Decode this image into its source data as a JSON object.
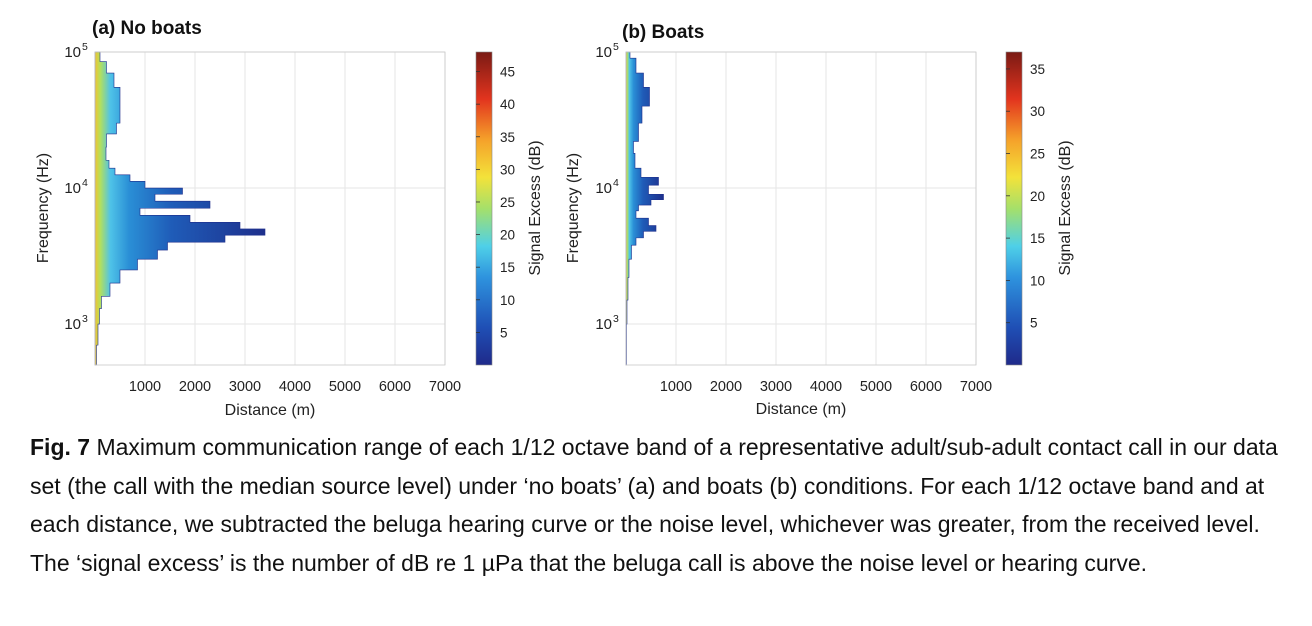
{
  "chart_data": [
    {
      "type": "heatmap",
      "title": "(a) No boats",
      "xlabel": "Distance (m)",
      "ylabel": "Frequency (Hz)",
      "colorbar_label": "Signal Excess (dB)",
      "xlim": [
        0,
        7000
      ],
      "ylim": [
        500,
        100000
      ],
      "y_scale": "log",
      "x_ticks": [
        1000,
        2000,
        3000,
        4000,
        5000,
        6000,
        7000
      ],
      "y_ticks": [
        {
          "value": 1000,
          "label": "10",
          "exp": "3"
        },
        {
          "value": 10000,
          "label": "10",
          "exp": "4"
        },
        {
          "value": 100000,
          "label": "10",
          "exp": "5"
        }
      ],
      "colorbar_range": [
        0,
        48
      ],
      "colorbar_ticks": [
        5,
        10,
        15,
        20,
        25,
        30,
        35,
        40,
        45
      ],
      "grid": true,
      "colormap": "jet",
      "max_range_profile": [
        {
          "f": 500,
          "d": 30
        },
        {
          "f": 700,
          "d": 60
        },
        {
          "f": 1000,
          "d": 90
        },
        {
          "f": 1300,
          "d": 130
        },
        {
          "f": 1600,
          "d": 300
        },
        {
          "f": 2000,
          "d": 500
        },
        {
          "f": 2500,
          "d": 850
        },
        {
          "f": 3000,
          "d": 1250
        },
        {
          "f": 3500,
          "d": 1450
        },
        {
          "f": 4000,
          "d": 2600
        },
        {
          "f": 4500,
          "d": 3400
        },
        {
          "f": 5000,
          "d": 2900
        },
        {
          "f": 5600,
          "d": 1900
        },
        {
          "f": 6300,
          "d": 900
        },
        {
          "f": 7100,
          "d": 2300
        },
        {
          "f": 8000,
          "d": 1200
        },
        {
          "f": 9000,
          "d": 1750
        },
        {
          "f": 10000,
          "d": 1000
        },
        {
          "f": 11200,
          "d": 700
        },
        {
          "f": 12500,
          "d": 400
        },
        {
          "f": 14000,
          "d": 280
        },
        {
          "f": 16000,
          "d": 220
        },
        {
          "f": 20000,
          "d": 230
        },
        {
          "f": 25000,
          "d": 430
        },
        {
          "f": 30000,
          "d": 500
        },
        {
          "f": 40000,
          "d": 500
        },
        {
          "f": 55000,
          "d": 380
        },
        {
          "f": 70000,
          "d": 230
        },
        {
          "f": 85000,
          "d": 100
        },
        {
          "f": 100000,
          "d": 40
        }
      ]
    },
    {
      "type": "heatmap",
      "title": "(b) Boats",
      "xlabel": "Distance (m)",
      "ylabel": "Frequency (Hz)",
      "colorbar_label": "Signal Excess (dB)",
      "xlim": [
        0,
        7000
      ],
      "ylim": [
        500,
        100000
      ],
      "y_scale": "log",
      "x_ticks": [
        1000,
        2000,
        3000,
        4000,
        5000,
        6000,
        7000
      ],
      "y_ticks": [
        {
          "value": 1000,
          "label": "10",
          "exp": "3"
        },
        {
          "value": 10000,
          "label": "10",
          "exp": "4"
        },
        {
          "value": 100000,
          "label": "10",
          "exp": "5"
        }
      ],
      "colorbar_range": [
        0,
        37
      ],
      "colorbar_ticks": [
        5,
        10,
        15,
        20,
        25,
        30,
        35
      ],
      "grid": true,
      "colormap": "jet",
      "max_range_profile": [
        {
          "f": 500,
          "d": 10
        },
        {
          "f": 1000,
          "d": 20
        },
        {
          "f": 1500,
          "d": 40
        },
        {
          "f": 2200,
          "d": 60
        },
        {
          "f": 3000,
          "d": 110
        },
        {
          "f": 3800,
          "d": 200
        },
        {
          "f": 4300,
          "d": 350
        },
        {
          "f": 4800,
          "d": 600
        },
        {
          "f": 5300,
          "d": 450
        },
        {
          "f": 6000,
          "d": 200
        },
        {
          "f": 6800,
          "d": 250
        },
        {
          "f": 7500,
          "d": 500
        },
        {
          "f": 8200,
          "d": 750
        },
        {
          "f": 9000,
          "d": 450
        },
        {
          "f": 10500,
          "d": 650
        },
        {
          "f": 12000,
          "d": 300
        },
        {
          "f": 14000,
          "d": 180
        },
        {
          "f": 18000,
          "d": 150
        },
        {
          "f": 22000,
          "d": 250
        },
        {
          "f": 30000,
          "d": 320
        },
        {
          "f": 40000,
          "d": 470
        },
        {
          "f": 55000,
          "d": 350
        },
        {
          "f": 70000,
          "d": 200
        },
        {
          "f": 90000,
          "d": 80
        },
        {
          "f": 100000,
          "d": 30
        }
      ]
    }
  ],
  "caption": {
    "label": "Fig. 7",
    "text": " Maximum communication range of each 1/12 octave band of a representative adult/sub-adult contact call in our data set (the call with the median source level) under ‘no boats’ (a) and boats (b) conditions. For each 1/12 octave band and at each distance, we subtracted the beluga hearing curve or the noise level, whichever was greater, from the received level. The ‘signal excess’ is the number of dB re 1 µPa that the beluga call is above the noise level or hearing curve."
  }
}
